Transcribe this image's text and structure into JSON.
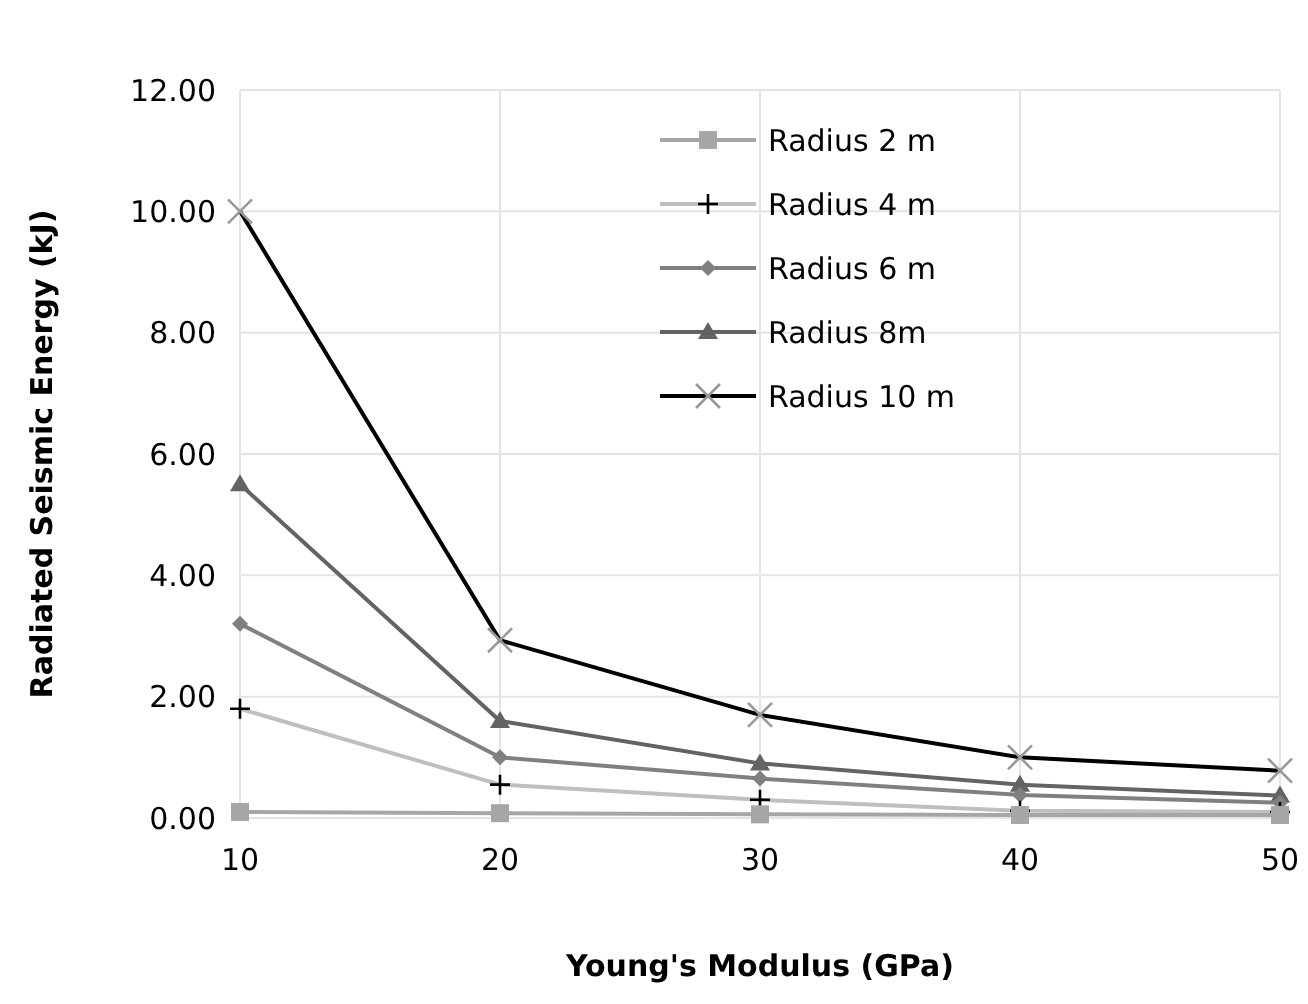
{
  "chart_data": {
    "type": "line",
    "xlabel": "Young's Modulus (GPa)",
    "ylabel": "Radiated Seismic Energy (kJ)",
    "x": [
      10,
      20,
      30,
      40,
      50
    ],
    "xlim": [
      10,
      50
    ],
    "xticks": [
      10,
      20,
      30,
      40,
      50
    ],
    "ylim": [
      0,
      12
    ],
    "yticks": [
      {
        "value": 0,
        "label": "0.00"
      },
      {
        "value": 2,
        "label": "2.00"
      },
      {
        "value": 4,
        "label": "4.00"
      },
      {
        "value": 6,
        "label": "6.00"
      },
      {
        "value": 8,
        "label": "8.00"
      },
      {
        "value": 10,
        "label": "10.00"
      },
      {
        "value": 12,
        "label": "12.00"
      }
    ],
    "grid": true,
    "legend": "top right",
    "series": [
      {
        "name": "Radius 2 m",
        "color": "#a6a6a6",
        "marker": "square",
        "values": [
          0.1,
          0.08,
          0.06,
          0.05,
          0.05
        ]
      },
      {
        "name": "Radius 4 m",
        "color": "#bfbfbf",
        "marker": "cross",
        "values": [
          1.8,
          0.55,
          0.3,
          0.12,
          0.1
        ]
      },
      {
        "name": "Radius 6 m",
        "color": "#808080",
        "marker": "diamond",
        "values": [
          3.2,
          1.0,
          0.65,
          0.38,
          0.25
        ]
      },
      {
        "name": "Radius 8m",
        "color": "#636363",
        "marker": "triangle",
        "values": [
          5.5,
          1.6,
          0.9,
          0.55,
          0.37
        ]
      },
      {
        "name": "Radius 10 m",
        "color": "#000000",
        "marker": "x",
        "values": [
          10.0,
          2.93,
          1.7,
          1.0,
          0.78
        ]
      }
    ]
  }
}
